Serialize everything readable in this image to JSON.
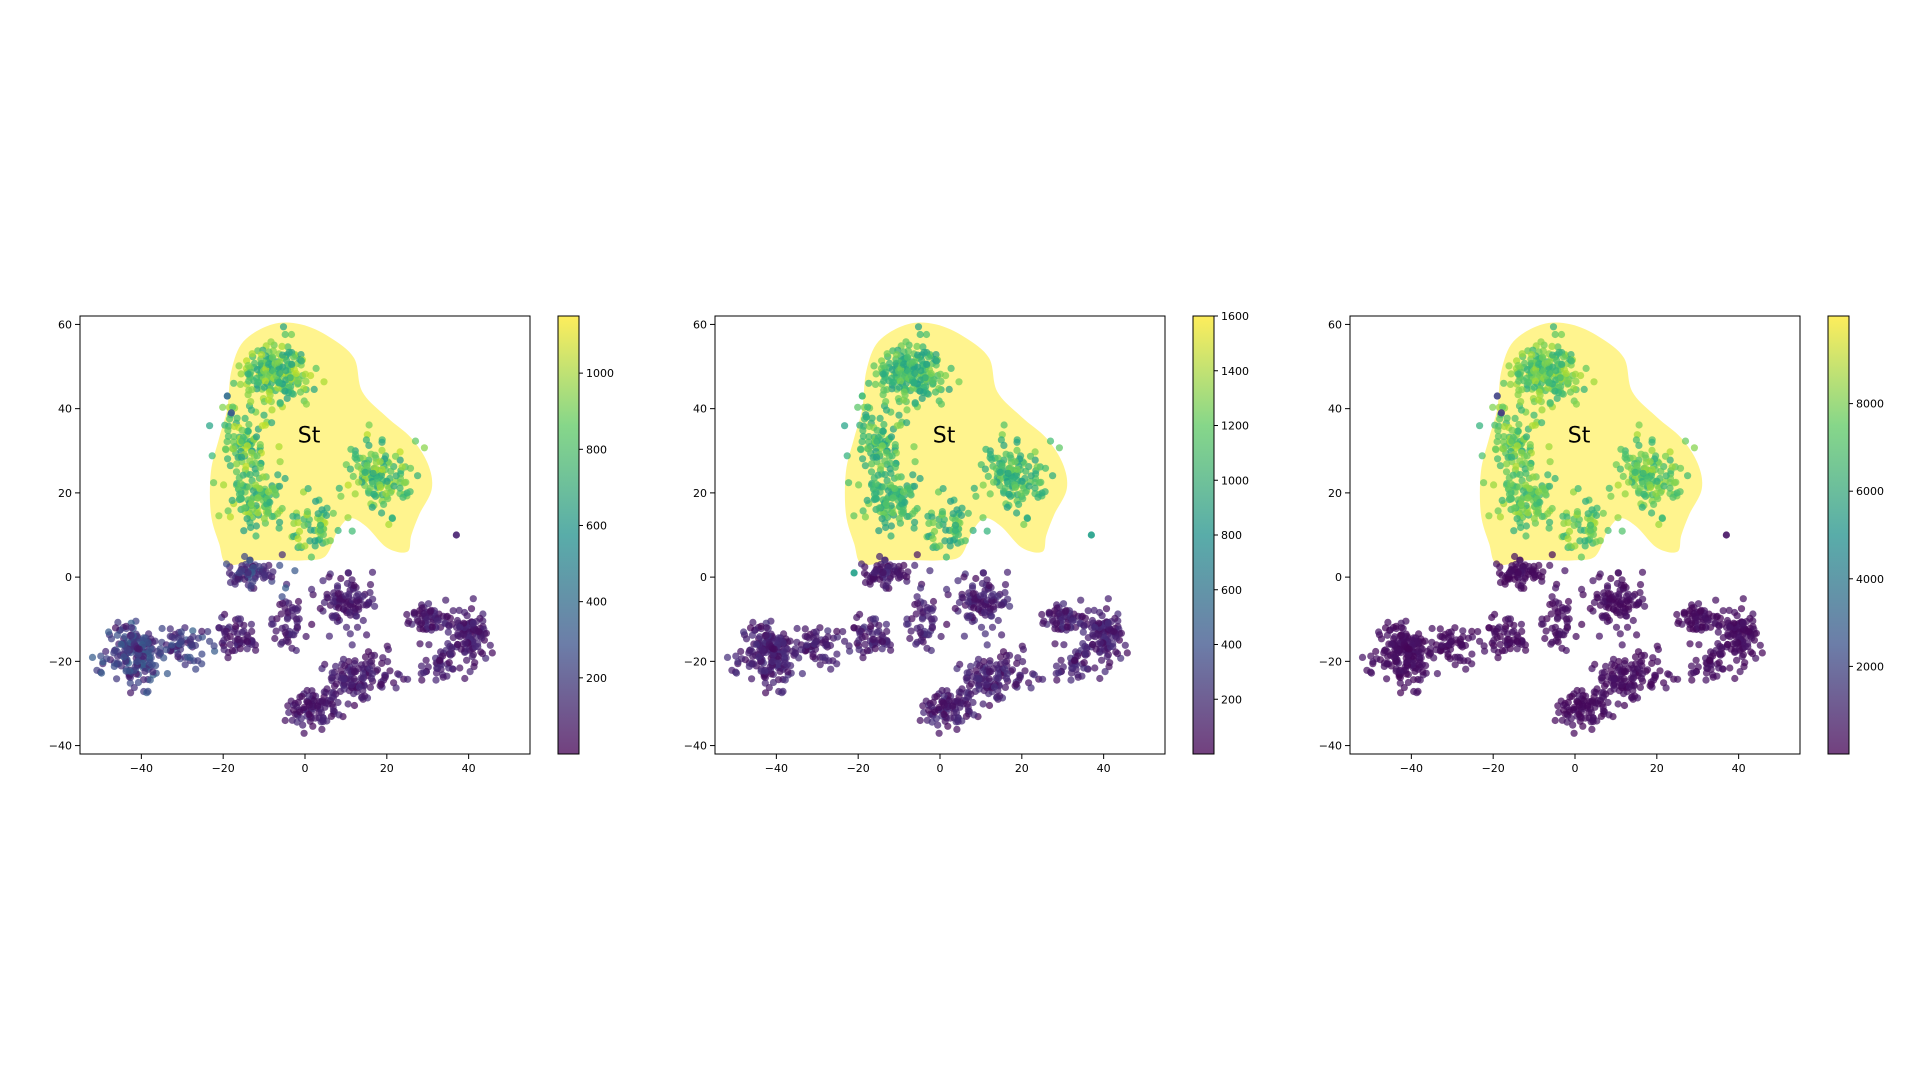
{
  "chart_data": [
    {
      "type": "scatter",
      "title": "",
      "xlabel": "",
      "ylabel": "",
      "xlim": [
        -55,
        55
      ],
      "ylim": [
        -42,
        62
      ],
      "xticks": [
        -40,
        -20,
        0,
        20,
        40
      ],
      "yticks": [
        -40,
        -20,
        0,
        20,
        40,
        60
      ],
      "grid": false,
      "colormap": "viridis",
      "colorbar": {
        "range": [
          0,
          1150
        ],
        "ticks": [
          200,
          400,
          600,
          800,
          1000
        ]
      },
      "highlight_region": {
        "label": "St",
        "label_x": 1,
        "label_y": 32,
        "color": "#fff27a"
      },
      "outliers": [
        {
          "x": -19,
          "y": 43,
          "value": 400
        },
        {
          "x": -18,
          "y": 39,
          "value": 300
        },
        {
          "x": 37,
          "y": 10,
          "value": 100
        }
      ]
    },
    {
      "type": "scatter",
      "title": "",
      "xlabel": "",
      "ylabel": "",
      "xlim": [
        -55,
        55
      ],
      "ylim": [
        -42,
        62
      ],
      "xticks": [
        -40,
        -20,
        0,
        20,
        40
      ],
      "yticks": [
        -40,
        -20,
        0,
        20,
        40,
        60
      ],
      "grid": false,
      "colormap": "viridis",
      "colorbar": {
        "range": [
          0,
          1600
        ],
        "ticks": [
          200,
          400,
          600,
          800,
          1000,
          1200,
          1400,
          1600
        ]
      },
      "highlight_region": {
        "label": "St",
        "label_x": 1,
        "label_y": 32,
        "color": "#fff27a"
      },
      "outliers": [
        {
          "x": -19,
          "y": 43,
          "value": 1100
        },
        {
          "x": -18,
          "y": 38,
          "value": 1000
        },
        {
          "x": 37,
          "y": 10,
          "value": 900
        },
        {
          "x": -21,
          "y": 1,
          "value": 900
        }
      ]
    },
    {
      "type": "scatter",
      "title": "",
      "xlabel": "",
      "ylabel": "",
      "xlim": [
        -55,
        55
      ],
      "ylim": [
        -42,
        62
      ],
      "xticks": [
        -40,
        -20,
        0,
        20,
        40
      ],
      "yticks": [
        -40,
        -20,
        0,
        20,
        40,
        60
      ],
      "grid": false,
      "colormap": "viridis",
      "colorbar": {
        "range": [
          0,
          10000
        ],
        "ticks": [
          2000,
          4000,
          6000,
          8000
        ]
      },
      "highlight_region": {
        "label": "St",
        "label_x": 1,
        "label_y": 32,
        "color": "#fff27a"
      },
      "outliers": [
        {
          "x": -19,
          "y": 43,
          "value": 2000
        },
        {
          "x": -18,
          "y": 39,
          "value": 1500
        },
        {
          "x": 37,
          "y": 10,
          "value": 500
        }
      ]
    }
  ]
}
